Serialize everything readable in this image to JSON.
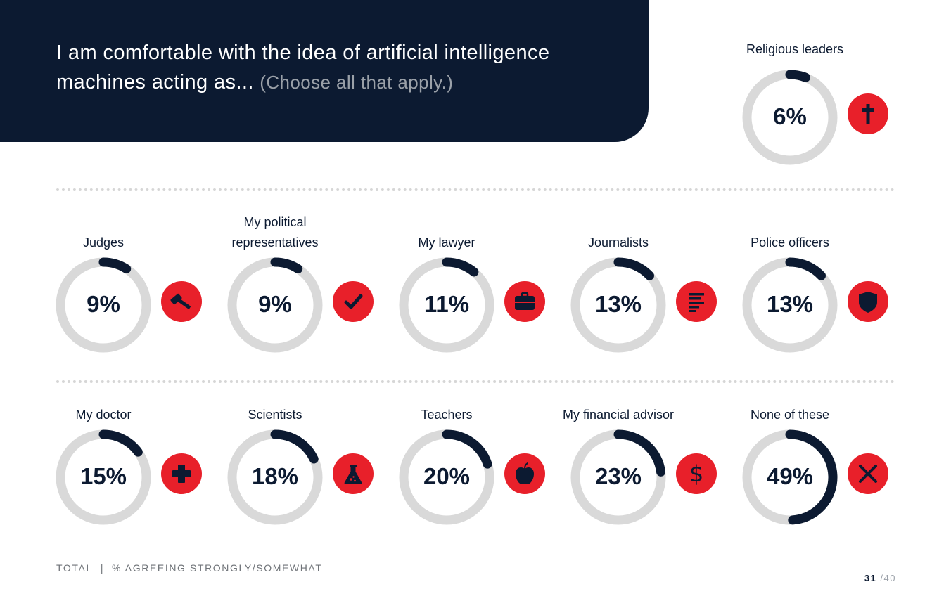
{
  "header": {
    "title_main": "I am comfortable with the idea of artificial intelligence machines acting as...",
    "title_sub": "(Choose all that apply.)"
  },
  "footer": {
    "total_label": "TOTAL",
    "separator": "|",
    "measure_label": "% AGREEING STRONGLY/SOMEWHAT"
  },
  "page": {
    "current": "31",
    "total": "/40"
  },
  "colors": {
    "navy": "#0c1a31",
    "track": "#d9d9d9",
    "accent_red": "#e8202a",
    "white": "#ffffff"
  },
  "chart_data": {
    "type": "donut",
    "title": "I am comfortable with the idea of artificial intelligence machines acting as... (Choose all that apply.)",
    "measure": "% agreeing strongly/somewhat",
    "base": "TOTAL",
    "value_range": [
      0,
      100
    ],
    "items": [
      {
        "label": "Religious leaders",
        "value": 6,
        "display": "6%",
        "icon": "cross-icon"
      },
      {
        "label": "Judges",
        "value": 9,
        "display": "9%",
        "icon": "gavel-icon"
      },
      {
        "label": "My political representatives",
        "value": 9,
        "display": "9%",
        "icon": "checkmark-icon"
      },
      {
        "label": "My lawyer",
        "value": 11,
        "display": "11%",
        "icon": "briefcase-icon"
      },
      {
        "label": "Journalists",
        "value": 13,
        "display": "13%",
        "icon": "text-lines-icon"
      },
      {
        "label": "Police officers",
        "value": 13,
        "display": "13%",
        "icon": "shield-icon"
      },
      {
        "label": "My doctor",
        "value": 15,
        "display": "15%",
        "icon": "medical-cross-icon"
      },
      {
        "label": "Scientists",
        "value": 18,
        "display": "18%",
        "icon": "flask-icon"
      },
      {
        "label": "Teachers",
        "value": 20,
        "display": "20%",
        "icon": "apple-icon"
      },
      {
        "label": "My financial advisor",
        "value": 23,
        "display": "23%",
        "icon": "dollar-icon"
      },
      {
        "label": "None of these",
        "value": 49,
        "display": "49%",
        "icon": "x-icon"
      }
    ]
  }
}
